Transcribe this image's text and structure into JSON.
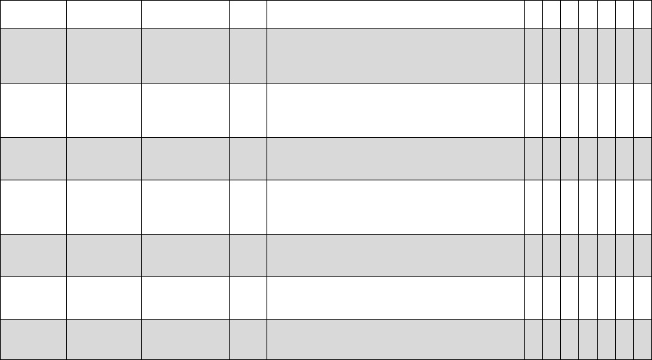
{
  "table": {
    "shade_color": "#d9d9d9",
    "columns": 12,
    "rows": [
      {
        "shaded": false,
        "cells": [
          "",
          "",
          "",
          "",
          "",
          "",
          "",
          "",
          "",
          "",
          "",
          ""
        ]
      },
      {
        "shaded": true,
        "cells": [
          "",
          "",
          "",
          "",
          "",
          "",
          "",
          "",
          "",
          "",
          "",
          ""
        ]
      },
      {
        "shaded": false,
        "cells": [
          "",
          "",
          "",
          "",
          "",
          "",
          "",
          "",
          "",
          "",
          "",
          ""
        ]
      },
      {
        "shaded": true,
        "cells": [
          "",
          "",
          "",
          "",
          "",
          "",
          "",
          "",
          "",
          "",
          "",
          ""
        ]
      },
      {
        "shaded": false,
        "cells": [
          "",
          "",
          "",
          "",
          "",
          "",
          "",
          "",
          "",
          "",
          "",
          ""
        ]
      },
      {
        "shaded": true,
        "cells": [
          "",
          "",
          "",
          "",
          "",
          "",
          "",
          "",
          "",
          "",
          "",
          ""
        ]
      },
      {
        "shaded": false,
        "cells": [
          "",
          "",
          "",
          "",
          "",
          "",
          "",
          "",
          "",
          "",
          "",
          ""
        ]
      },
      {
        "shaded": true,
        "cells": [
          "",
          "",
          "",
          "",
          "",
          "",
          "",
          "",
          "",
          "",
          "",
          ""
        ]
      }
    ]
  }
}
